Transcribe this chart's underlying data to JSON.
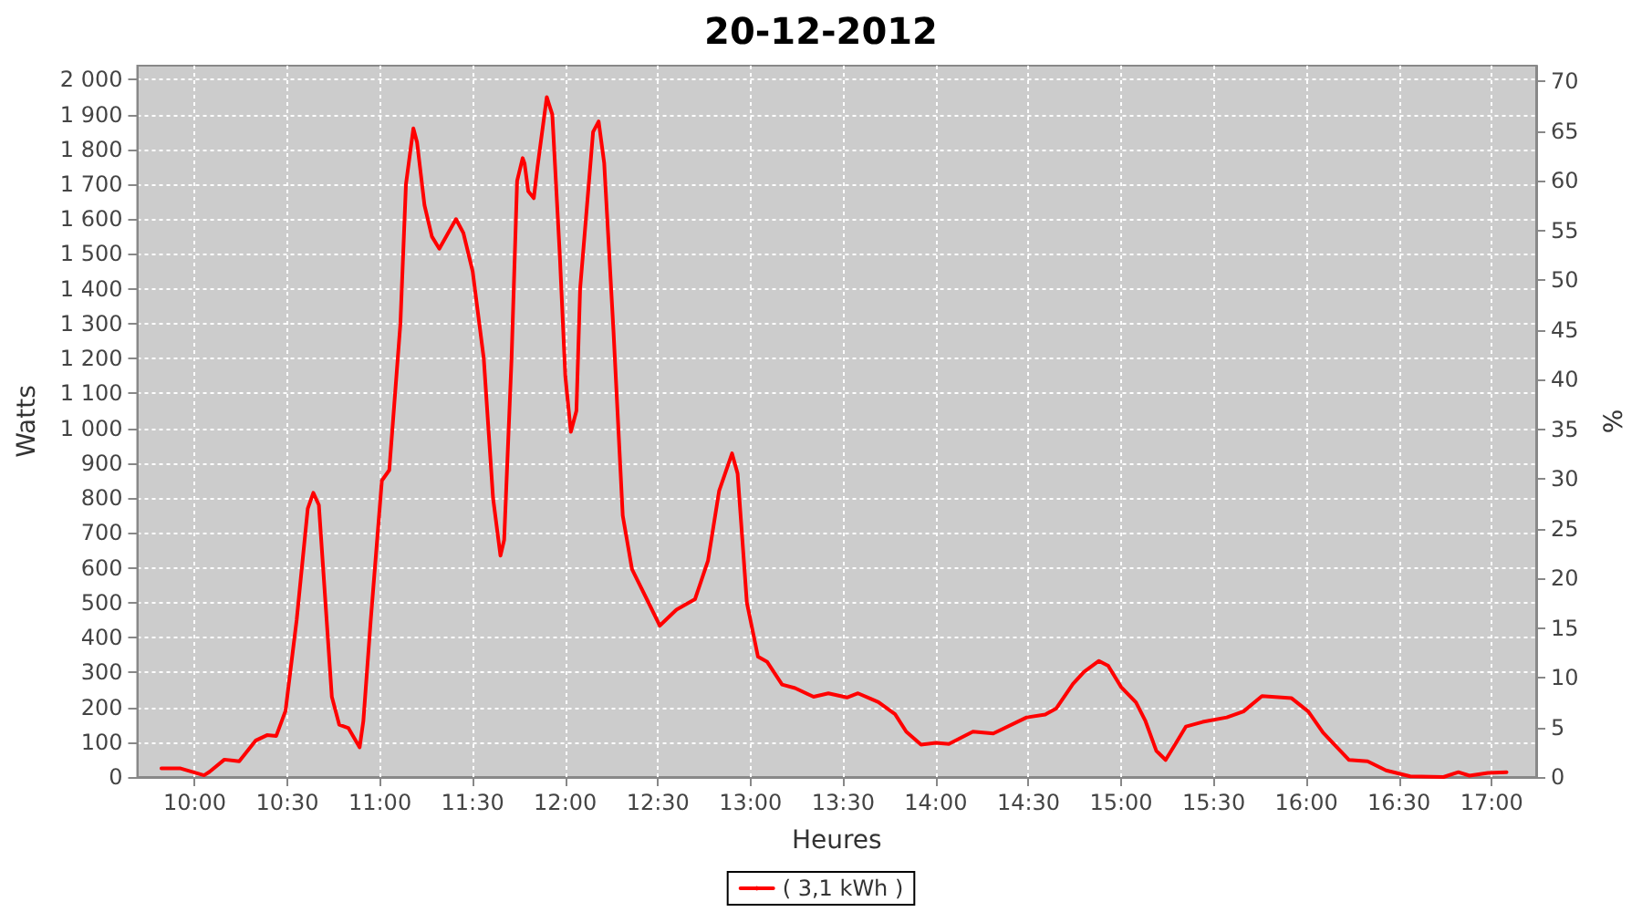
{
  "chart_data": {
    "type": "line",
    "title": "20-12-2012",
    "xlabel": "Heures",
    "ylabel": "Watts",
    "y2label": "%",
    "xlim": [
      9.69,
      17.24
    ],
    "xticks": [
      {
        "value": 10,
        "label": "10:00"
      },
      {
        "value": 10.5,
        "label": "10:30"
      },
      {
        "value": 11,
        "label": "11:00"
      },
      {
        "value": 11.5,
        "label": "11:30"
      },
      {
        "value": 12,
        "label": "12:00"
      },
      {
        "value": 12.5,
        "label": "12:30"
      },
      {
        "value": 13,
        "label": "13:00"
      },
      {
        "value": 13.5,
        "label": "13:30"
      },
      {
        "value": 14,
        "label": "14:00"
      },
      {
        "value": 14.5,
        "label": "14:30"
      },
      {
        "value": 15,
        "label": "15:00"
      },
      {
        "value": 15.5,
        "label": "15:30"
      },
      {
        "value": 16,
        "label": "16:00"
      },
      {
        "value": 16.5,
        "label": "16:30"
      },
      {
        "value": 17,
        "label": "17:00"
      }
    ],
    "ylim": [
      0,
      2040
    ],
    "yticks": [
      0,
      100,
      200,
      300,
      400,
      500,
      600,
      700,
      800,
      900,
      {
        "value": 1000,
        "label": "1 000"
      },
      {
        "value": 1100,
        "label": "1 100"
      },
      {
        "value": 1200,
        "label": "1 200"
      },
      {
        "value": 1300,
        "label": "1 300"
      },
      {
        "value": 1400,
        "label": "1 400"
      },
      {
        "value": 1500,
        "label": "1 500"
      },
      {
        "value": 1600,
        "label": "1 600"
      },
      {
        "value": 1700,
        "label": "1 700"
      },
      {
        "value": 1800,
        "label": "1 800"
      },
      {
        "value": 1900,
        "label": "1 900"
      },
      {
        "value": 2000,
        "label": "2 000"
      }
    ],
    "y2lim": [
      0,
      71.6
    ],
    "y2ticks": [
      0,
      5,
      10,
      15,
      20,
      25,
      30,
      35,
      40,
      45,
      50,
      55,
      60,
      65,
      70
    ],
    "grid": true,
    "legend": "bottom",
    "marker": "none",
    "line_style": "solid",
    "series": [
      {
        "name": "( 3,1 kWh )",
        "color": "#ff0000",
        "x": [
          9.82,
          9.92,
          10.05,
          10.08,
          10.16,
          10.24,
          10.33,
          10.39,
          10.44,
          10.49,
          10.55,
          10.61,
          10.64,
          10.67,
          10.74,
          10.78,
          10.83,
          10.89,
          10.91,
          10.95,
          11.01,
          11.05,
          11.11,
          11.14,
          11.18,
          11.2,
          11.24,
          11.28,
          11.32,
          11.41,
          11.45,
          11.5,
          11.56,
          11.61,
          11.65,
          11.67,
          11.71,
          11.74,
          11.77,
          11.78,
          11.8,
          11.83,
          11.85,
          11.9,
          11.93,
          11.97,
          12.0,
          12.03,
          12.06,
          12.08,
          12.15,
          12.18,
          12.21,
          12.26,
          12.31,
          12.36,
          12.44,
          12.51,
          12.6,
          12.7,
          12.77,
          12.83,
          12.9,
          12.93,
          12.98,
          13.04,
          13.09,
          13.17,
          13.24,
          13.34,
          13.42,
          13.52,
          13.58,
          13.69,
          13.78,
          13.84,
          13.92,
          14.0,
          14.07,
          14.2,
          14.31,
          14.49,
          14.59,
          14.65,
          14.74,
          14.8,
          14.88,
          14.93,
          15.0,
          15.08,
          15.13,
          15.19,
          15.24,
          15.29,
          15.35,
          15.44,
          15.57,
          15.66,
          15.76,
          15.92,
          16.01,
          16.09,
          16.23,
          16.33,
          16.43,
          16.56,
          16.74,
          16.82,
          16.88,
          16.98,
          17.08
        ],
        "values": [
          25,
          25,
          5,
          15,
          50,
          45,
          105,
          120,
          118,
          190,
          450,
          770,
          815,
          780,
          230,
          150,
          140,
          85,
          160,
          450,
          850,
          880,
          1300,
          1700,
          1860,
          1820,
          1640,
          1550,
          1515,
          1600,
          1560,
          1450,
          1200,
          800,
          635,
          680,
          1200,
          1710,
          1775,
          1760,
          1680,
          1660,
          1750,
          1950,
          1900,
          1500,
          1150,
          990,
          1050,
          1400,
          1850,
          1880,
          1760,
          1280,
          750,
          596,
          510,
          434,
          480,
          510,
          620,
          820,
          928,
          870,
          500,
          345,
          330,
          265,
          255,
          230,
          240,
          228,
          240,
          215,
          180,
          130,
          93,
          98,
          95,
          130,
          125,
          171,
          179,
          197,
          267,
          302,
          333,
          319,
          258,
          214,
          162,
          75,
          49,
          92,
          145,
          158,
          171,
          188,
          232,
          226,
          188,
          127,
          49,
          45,
          19,
          2,
          0,
          14,
          4,
          12,
          14
        ]
      }
    ]
  }
}
